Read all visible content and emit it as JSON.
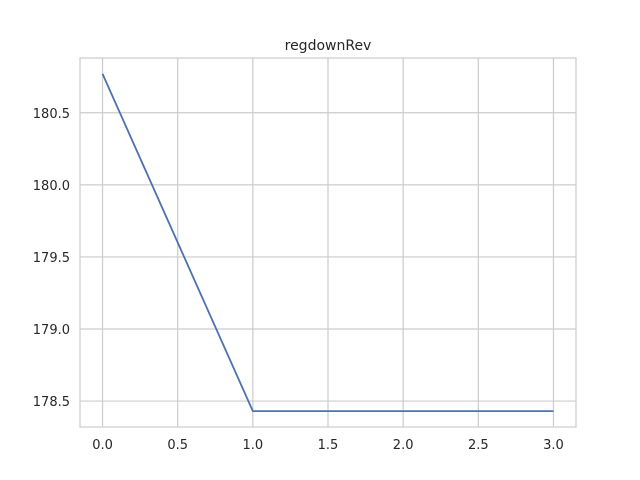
{
  "chart_data": {
    "type": "line",
    "title": "regdownRev",
    "xlabel": "",
    "ylabel": "",
    "x": [
      0,
      1,
      2,
      3
    ],
    "series": [
      {
        "values": [
          180.77,
          178.43,
          178.43,
          178.43
        ],
        "color": "#4c72b0"
      }
    ],
    "xlim": [
      -0.15,
      3.15
    ],
    "ylim": [
      178.32,
      180.88
    ],
    "xticks": [
      0,
      0.5,
      1,
      1.5,
      2,
      2.5,
      3
    ],
    "xtick_labels": [
      "0.0",
      "0.5",
      "1.0",
      "1.5",
      "2.0",
      "2.5",
      "3.0"
    ],
    "yticks": [
      178.5,
      179,
      179.5,
      180,
      180.5
    ],
    "ytick_labels": [
      "178.5",
      "179.0",
      "179.5",
      "180.0",
      "180.5"
    ],
    "grid": true,
    "grid_color": "#cccccc",
    "axes_edge_color": "#cccccc"
  }
}
